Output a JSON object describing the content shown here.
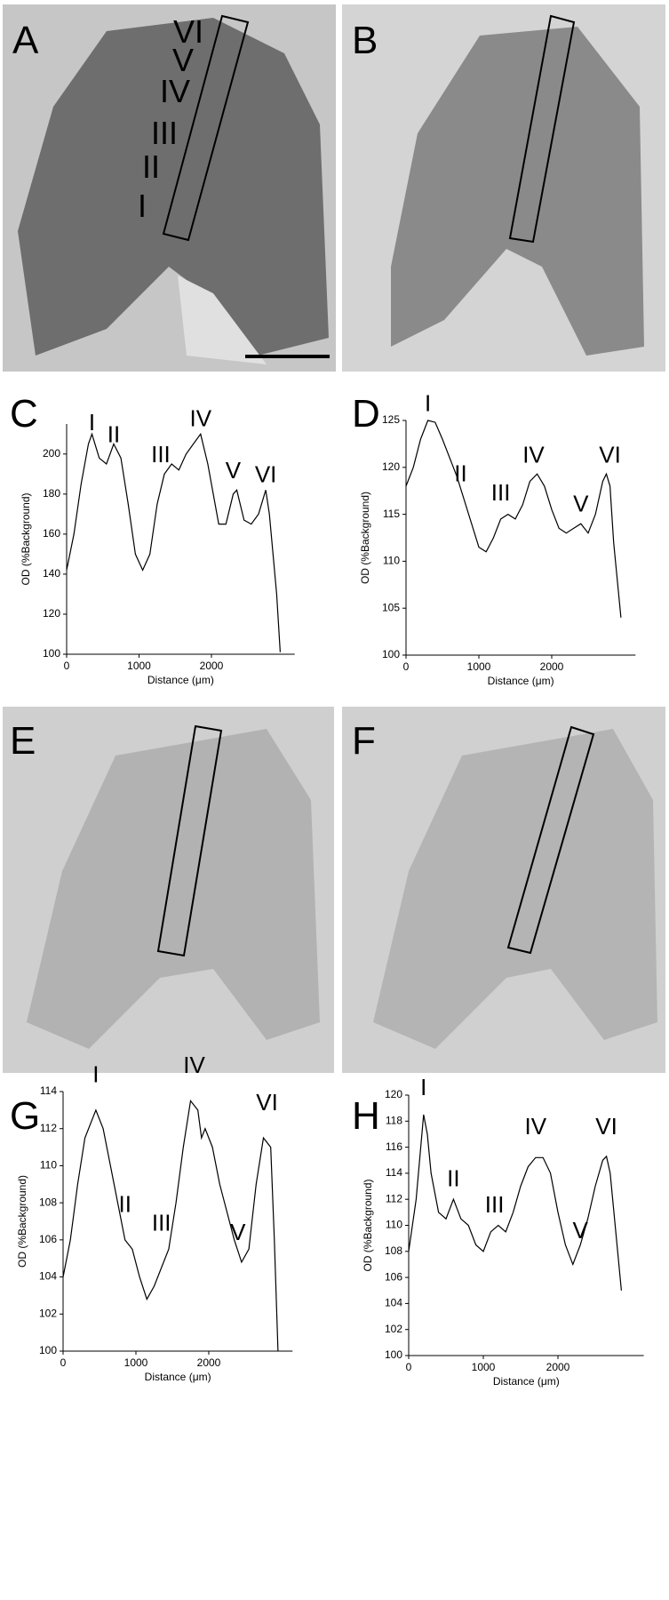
{
  "images": [
    {
      "letter": "A",
      "layers": [
        "VI",
        "V",
        "IV",
        "III",
        "II",
        "I"
      ]
    },
    {
      "letter": "B"
    },
    {
      "letter": "E"
    },
    {
      "letter": "F"
    }
  ],
  "chart_data": [
    {
      "type": "line",
      "panel": "C",
      "xlabel": "Distance (μm)",
      "ylabel": "OD (%Background)",
      "color": "#000000",
      "xlim": [
        0,
        3150
      ],
      "xticks": [
        0,
        1000,
        2000
      ],
      "ylim": [
        100,
        215
      ],
      "yticks": [
        100,
        120,
        140,
        160,
        180,
        200
      ],
      "x": [
        0,
        100,
        200,
        300,
        350,
        450,
        550,
        650,
        750,
        850,
        950,
        1050,
        1150,
        1250,
        1350,
        1450,
        1550,
        1650,
        1750,
        1850,
        1950,
        2050,
        2100,
        2200,
        2300,
        2350,
        2450,
        2550,
        2650,
        2750,
        2800,
        2900,
        2950
      ],
      "values": [
        142,
        160,
        185,
        205,
        210,
        198,
        195,
        205,
        198,
        175,
        150,
        142,
        150,
        175,
        190,
        195,
        192,
        200,
        205,
        210,
        195,
        175,
        165,
        165,
        180,
        182,
        167,
        165,
        170,
        182,
        170,
        130,
        101
      ],
      "annotations": [
        {
          "text": "I",
          "x": 350,
          "y": 212
        },
        {
          "text": "II",
          "x": 650,
          "y": 206
        },
        {
          "text": "III",
          "x": 1300,
          "y": 196
        },
        {
          "text": "IV",
          "x": 1850,
          "y": 214
        },
        {
          "text": "V",
          "x": 2300,
          "y": 188
        },
        {
          "text": "VI",
          "x": 2750,
          "y": 186
        }
      ]
    },
    {
      "type": "line",
      "panel": "D",
      "xlabel": "Distance (μm)",
      "ylabel": "OD (%Background)",
      "color": "#000000",
      "xlim": [
        0,
        3150
      ],
      "xticks": [
        0,
        1000,
        2000
      ],
      "ylim": [
        100,
        125
      ],
      "yticks": [
        100,
        105,
        110,
        115,
        120,
        125
      ],
      "x": [
        0,
        100,
        200,
        300,
        400,
        500,
        700,
        900,
        1000,
        1100,
        1200,
        1300,
        1400,
        1500,
        1600,
        1700,
        1800,
        1900,
        2000,
        2100,
        2200,
        2300,
        2400,
        2500,
        2600,
        2700,
        2750,
        2800,
        2850,
        2950
      ],
      "values": [
        118,
        120,
        123,
        125,
        124.8,
        123,
        119,
        114,
        111.5,
        111,
        112.5,
        114.5,
        115,
        114.5,
        116,
        118.5,
        119.3,
        118,
        115.5,
        113.5,
        113,
        113.5,
        114,
        113,
        115,
        118.5,
        119.3,
        118,
        112,
        104
      ],
      "annotations": [
        {
          "text": "I",
          "x": 300,
          "y": 126
        },
        {
          "text": "II",
          "x": 750,
          "y": 118.5
        },
        {
          "text": "III",
          "x": 1300,
          "y": 116.5
        },
        {
          "text": "IV",
          "x": 1750,
          "y": 120.5
        },
        {
          "text": "V",
          "x": 2400,
          "y": 115.3
        },
        {
          "text": "VI",
          "x": 2800,
          "y": 120.5
        }
      ]
    },
    {
      "type": "line",
      "panel": "G",
      "xlabel": "Distance (μm)",
      "ylabel": "OD (%Background)",
      "color": "#000000",
      "xlim": [
        0,
        3150
      ],
      "xticks": [
        0,
        1000,
        2000
      ],
      "ylim": [
        100,
        114
      ],
      "yticks": [
        100,
        102,
        104,
        106,
        108,
        110,
        112,
        114
      ],
      "x": [
        0,
        100,
        200,
        300,
        400,
        450,
        550,
        650,
        750,
        850,
        950,
        1050,
        1150,
        1250,
        1350,
        1450,
        1550,
        1650,
        1750,
        1850,
        1900,
        1950,
        2050,
        2150,
        2250,
        2350,
        2450,
        2550,
        2650,
        2750,
        2850,
        2900,
        2950
      ],
      "values": [
        104,
        106,
        109,
        111.5,
        112.5,
        113,
        112,
        110,
        108,
        106,
        105.5,
        104,
        102.8,
        103.5,
        104.5,
        105.5,
        108,
        111,
        113.5,
        113,
        111.5,
        112,
        111,
        109,
        107.5,
        106,
        104.8,
        105.5,
        109,
        111.5,
        111,
        106,
        100
      ],
      "annotations": [
        {
          "text": "I",
          "x": 450,
          "y": 114.5
        },
        {
          "text": "II",
          "x": 850,
          "y": 107.5
        },
        {
          "text": "III",
          "x": 1350,
          "y": 106.5
        },
        {
          "text": "IV",
          "x": 1800,
          "y": 115
        },
        {
          "text": "V",
          "x": 2400,
          "y": 106
        },
        {
          "text": "VI",
          "x": 2800,
          "y": 113
        }
      ]
    },
    {
      "type": "line",
      "panel": "H",
      "xlabel": "Distance (μm)",
      "ylabel": "OD (%Background)",
      "color": "#000000",
      "xlim": [
        0,
        3150
      ],
      "xticks": [
        0,
        1000,
        2000
      ],
      "ylim": [
        100,
        120
      ],
      "yticks": [
        100,
        102,
        104,
        106,
        108,
        110,
        112,
        114,
        116,
        118,
        120
      ],
      "x": [
        0,
        100,
        200,
        250,
        300,
        400,
        500,
        600,
        700,
        800,
        900,
        1000,
        1100,
        1200,
        1300,
        1400,
        1500,
        1600,
        1700,
        1800,
        1900,
        2000,
        2100,
        2200,
        2300,
        2400,
        2500,
        2600,
        2650,
        2700,
        2800,
        2850
      ],
      "values": [
        108,
        112,
        118.5,
        117,
        114,
        111,
        110.5,
        112,
        110.5,
        110,
        108.5,
        108,
        109.5,
        110,
        109.5,
        111,
        113,
        114.5,
        115.2,
        115.2,
        114,
        111,
        108.5,
        107,
        108.5,
        110.5,
        113,
        115,
        115.3,
        114,
        108,
        105
      ],
      "annotations": [
        {
          "text": "I",
          "x": 200,
          "y": 120
        },
        {
          "text": "II",
          "x": 600,
          "y": 113
        },
        {
          "text": "III",
          "x": 1150,
          "y": 111
        },
        {
          "text": "IV",
          "x": 1700,
          "y": 117
        },
        {
          "text": "V",
          "x": 2300,
          "y": 109
        },
        {
          "text": "VI",
          "x": 2650,
          "y": 117
        }
      ]
    }
  ]
}
